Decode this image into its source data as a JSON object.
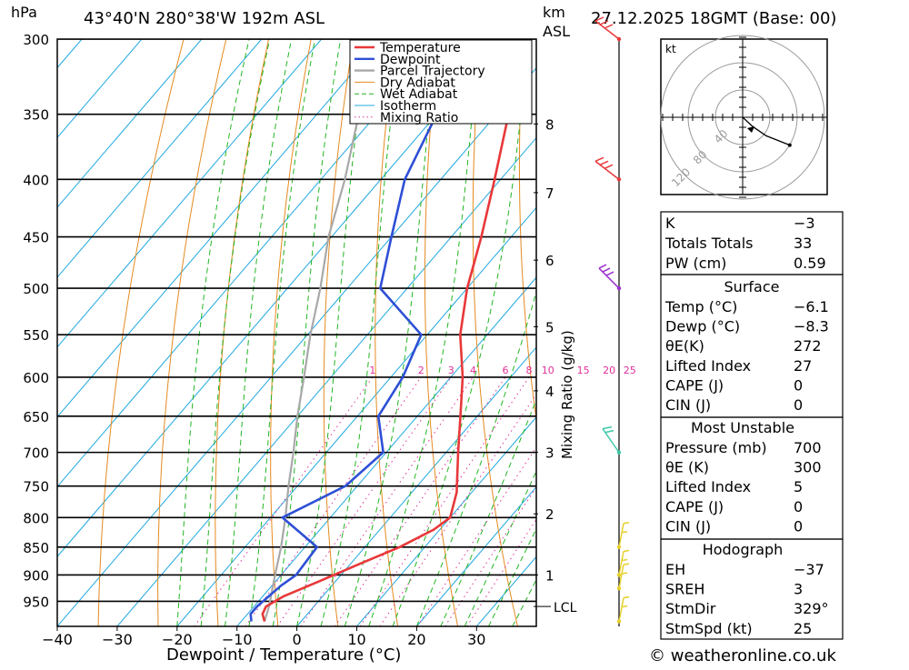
{
  "header": {
    "location": "43°40'N  280°38'W  192m  ASL",
    "datetime": "27.12.2025  18GMT  (Base: 00)",
    "hpa_unit": "hPa",
    "km_unit": "km",
    "asl_unit": "ASL"
  },
  "footer": {
    "copyright": "© weatheronline.co.uk"
  },
  "chart_data": [
    {
      "type": "line",
      "subtype": "skew-T log-p sounding",
      "title": "43°40'N  280°38'W  192m  ASL",
      "xlabel": "Dewpoint / Temperature (°C)",
      "ylabel": "hPa",
      "secondary_ylabel": "Mixing Ratio (g/kg)",
      "xlim": [
        -40,
        40
      ],
      "x_ticks": [
        -40,
        -30,
        -20,
        -10,
        0,
        10,
        20,
        30
      ],
      "x_tick_labels": [
        "−40",
        "−30",
        "−20",
        "−10",
        "0",
        "10",
        "20",
        "30"
      ],
      "ylim": [
        1000,
        300
      ],
      "pressure_levels": [
        300,
        350,
        400,
        450,
        500,
        550,
        600,
        650,
        700,
        750,
        800,
        850,
        900,
        950
      ],
      "km_ticks": [
        {
          "km": "1",
          "p": 900
        },
        {
          "km": "2",
          "p": 794
        },
        {
          "km": "3",
          "p": 700
        },
        {
          "km": "4",
          "p": 617
        },
        {
          "km": "5",
          "p": 541
        },
        {
          "km": "6",
          "p": 472
        },
        {
          "km": "7",
          "p": 411
        },
        {
          "km": "8",
          "p": 357
        }
      ],
      "lcl": {
        "label": "LCL",
        "p": 960
      },
      "mixing_ratio_labels": [
        "1",
        "2",
        "3",
        "4",
        "6",
        "8",
        "10",
        "15",
        "20",
        "25"
      ],
      "legend": [
        "Temperature",
        "Dewpoint",
        "Parcel Trajectory",
        "Dry Adiabat",
        "Wet Adiabat",
        "Isotherm",
        "Mixing Ratio"
      ],
      "legend_position": "top-right",
      "series": [
        {
          "name": "Temperature",
          "color": "#e8383a",
          "points": [
            [
              990,
              -6.1
            ],
            [
              975,
              -7.5
            ],
            [
              960,
              -8.0
            ],
            [
              940,
              -6.5
            ],
            [
              910,
              -2.5
            ],
            [
              880,
              1.5
            ],
            [
              850,
              5.8
            ],
            [
              820,
              9.0
            ],
            [
              800,
              10.0
            ],
            [
              760,
              7.5
            ],
            [
              700,
              2.0
            ],
            [
              650,
              -2.8
            ],
            [
              600,
              -8.0
            ],
            [
              550,
              -14.5
            ],
            [
              500,
              -20.0
            ],
            [
              450,
              -25.0
            ],
            [
              400,
              -31.0
            ],
            [
              350,
              -38.0
            ],
            [
              300,
              -46.0
            ]
          ]
        },
        {
          "name": "Dewpoint",
          "color": "#2e4fd6",
          "points": [
            [
              990,
              -8.3
            ],
            [
              975,
              -9.5
            ],
            [
              960,
              -9.5
            ],
            [
              920,
              -8.5
            ],
            [
              900,
              -7.5
            ],
            [
              850,
              -8.0
            ],
            [
              800,
              -18.0
            ],
            [
              750,
              -12.0
            ],
            [
              700,
              -10.5
            ],
            [
              650,
              -16.5
            ],
            [
              600,
              -18.0
            ],
            [
              550,
              -21.0
            ],
            [
              500,
              -34.5
            ],
            [
              450,
              -40.0
            ],
            [
              400,
              -46.0
            ],
            [
              350,
              -50.0
            ],
            [
              300,
              -57.0
            ]
          ]
        },
        {
          "name": "Parcel Trajectory",
          "color": "#a8a8a8",
          "points": [
            [
              990,
              -6.1
            ],
            [
              960,
              -7.5
            ],
            [
              900,
              -11.0
            ],
            [
              850,
              -14.0
            ],
            [
              800,
              -17.5
            ],
            [
              750,
              -21.5
            ],
            [
              700,
              -25.5
            ],
            [
              650,
              -30.0
            ],
            [
              600,
              -34.5
            ],
            [
              550,
              -39.5
            ],
            [
              500,
              -44.5
            ],
            [
              450,
              -50.5
            ],
            [
              400,
              -56.0
            ],
            [
              350,
              -63.0
            ],
            [
              300,
              -70.0
            ]
          ]
        }
      ],
      "wind_barbs": [
        {
          "p": 300,
          "color": "#e8383a"
        },
        {
          "p": 400,
          "color": "#e8383a"
        },
        {
          "p": 500,
          "color": "#9b30d0"
        },
        {
          "p": 700,
          "color": "#3cc9a8"
        },
        {
          "p": 850,
          "color": "#e6d02a"
        },
        {
          "p": 900,
          "color": "#e6d02a"
        },
        {
          "p": 925,
          "color": "#e6d02a"
        },
        {
          "p": 990,
          "color": "#e6d02a"
        }
      ]
    },
    {
      "type": "scatter",
      "subtype": "hodograph",
      "unit_label": "kt",
      "ring_labels": [
        "40",
        "80",
        "120"
      ],
      "points": [
        [
          0,
          0
        ],
        [
          6,
          -6
        ],
        [
          14,
          -12
        ],
        [
          28,
          -18
        ]
      ]
    }
  ],
  "indices": {
    "rows": [
      {
        "label": "K",
        "value": "−3"
      },
      {
        "label": "Totals Totals",
        "value": "33"
      },
      {
        "label": "PW (cm)",
        "value": "0.59"
      }
    ]
  },
  "surface": {
    "title": "Surface",
    "rows": [
      {
        "label": "Temp (°C)",
        "value": "−6.1"
      },
      {
        "label": "Dewp (°C)",
        "value": "−8.3"
      },
      {
        "label": "θE(K)",
        "value": "272"
      },
      {
        "label": "Lifted Index",
        "value": "27"
      },
      {
        "label": "CAPE (J)",
        "value": "0"
      },
      {
        "label": "CIN (J)",
        "value": "0"
      }
    ]
  },
  "most_unstable": {
    "title": "Most Unstable",
    "rows": [
      {
        "label": "Pressure (mb)",
        "value": "700"
      },
      {
        "label": "θE (K)",
        "value": "300"
      },
      {
        "label": "Lifted Index",
        "value": "5"
      },
      {
        "label": "CAPE (J)",
        "value": "0"
      },
      {
        "label": "CIN (J)",
        "value": "0"
      }
    ]
  },
  "hodograph_table": {
    "title": "Hodograph",
    "rows": [
      {
        "label": "EH",
        "value": "−37"
      },
      {
        "label": "SREH",
        "value": "3"
      },
      {
        "label": "StmDir",
        "value": "329°"
      },
      {
        "label": "StmSpd (kt)",
        "value": "25"
      }
    ]
  },
  "colors": {
    "temperature": "#e8383a",
    "dewpoint": "#2e4fd6",
    "parcel": "#a8a8a8",
    "dry_adiabat": "#e58a1f",
    "wet_adiabat": "#22b522",
    "isotherm": "#20a8e0",
    "mixing_ratio": "#e0309a"
  }
}
